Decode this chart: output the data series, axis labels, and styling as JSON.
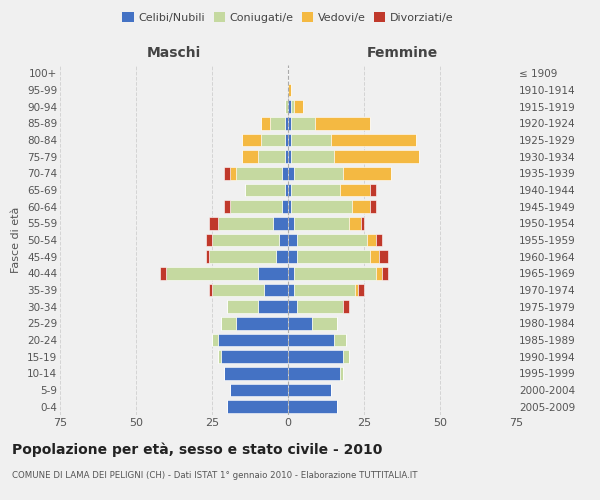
{
  "age_groups": [
    "100+",
    "95-99",
    "90-94",
    "85-89",
    "80-84",
    "75-79",
    "70-74",
    "65-69",
    "60-64",
    "55-59",
    "50-54",
    "45-49",
    "40-44",
    "35-39",
    "30-34",
    "25-29",
    "20-24",
    "15-19",
    "10-14",
    "5-9",
    "0-4"
  ],
  "birth_years": [
    "≤ 1909",
    "1910-1914",
    "1915-1919",
    "1920-1924",
    "1925-1929",
    "1930-1934",
    "1935-1939",
    "1940-1944",
    "1945-1949",
    "1950-1954",
    "1955-1959",
    "1960-1964",
    "1965-1969",
    "1970-1974",
    "1975-1979",
    "1980-1984",
    "1985-1989",
    "1990-1994",
    "1995-1999",
    "2000-2004",
    "2005-2009"
  ],
  "maschi": {
    "celibi": [
      0,
      0,
      0,
      1,
      1,
      1,
      2,
      1,
      2,
      5,
      3,
      4,
      10,
      8,
      10,
      17,
      23,
      22,
      21,
      19,
      20
    ],
    "coniugati": [
      0,
      0,
      1,
      5,
      8,
      9,
      15,
      13,
      17,
      18,
      22,
      22,
      30,
      17,
      10,
      5,
      2,
      1,
      0,
      0,
      0
    ],
    "vedovi": [
      0,
      0,
      0,
      3,
      6,
      5,
      2,
      0,
      0,
      0,
      0,
      0,
      0,
      0,
      0,
      0,
      0,
      0,
      0,
      0,
      0
    ],
    "divorziati": [
      0,
      0,
      0,
      0,
      0,
      0,
      2,
      0,
      2,
      3,
      2,
      1,
      2,
      1,
      0,
      0,
      0,
      0,
      0,
      0,
      0
    ]
  },
  "femmine": {
    "nubili": [
      0,
      0,
      1,
      1,
      1,
      1,
      2,
      1,
      1,
      2,
      3,
      3,
      2,
      2,
      3,
      8,
      15,
      18,
      17,
      14,
      16
    ],
    "coniugate": [
      0,
      0,
      1,
      8,
      13,
      14,
      16,
      16,
      20,
      18,
      23,
      24,
      27,
      20,
      15,
      8,
      4,
      2,
      1,
      0,
      0
    ],
    "vedove": [
      0,
      1,
      3,
      18,
      28,
      28,
      16,
      10,
      6,
      4,
      3,
      3,
      2,
      1,
      0,
      0,
      0,
      0,
      0,
      0,
      0
    ],
    "divorziate": [
      0,
      0,
      0,
      0,
      0,
      0,
      0,
      2,
      2,
      1,
      2,
      3,
      2,
      2,
      2,
      0,
      0,
      0,
      0,
      0,
      0
    ]
  },
  "colors": {
    "celibi_nubili": "#4472c4",
    "coniugati": "#c5d9a0",
    "vedovi": "#f4b942",
    "divorziati": "#c0392b"
  },
  "xlim": 75,
  "title": "Popolazione per età, sesso e stato civile - 2010",
  "subtitle": "COMUNE DI LAMA DEI PELIGNI (CH) - Dati ISTAT 1° gennaio 2010 - Elaborazione TUTTITALIA.IT",
  "ylabel_left": "Fasce di età",
  "label_maschi": "Maschi",
  "label_femmine": "Femmine",
  "legend_labels": [
    "Celibi/Nubili",
    "Coniugati/e",
    "Vedovi/e",
    "Divorziati/e"
  ],
  "bg_color": "#f0f0f0",
  "bar_height": 0.75
}
